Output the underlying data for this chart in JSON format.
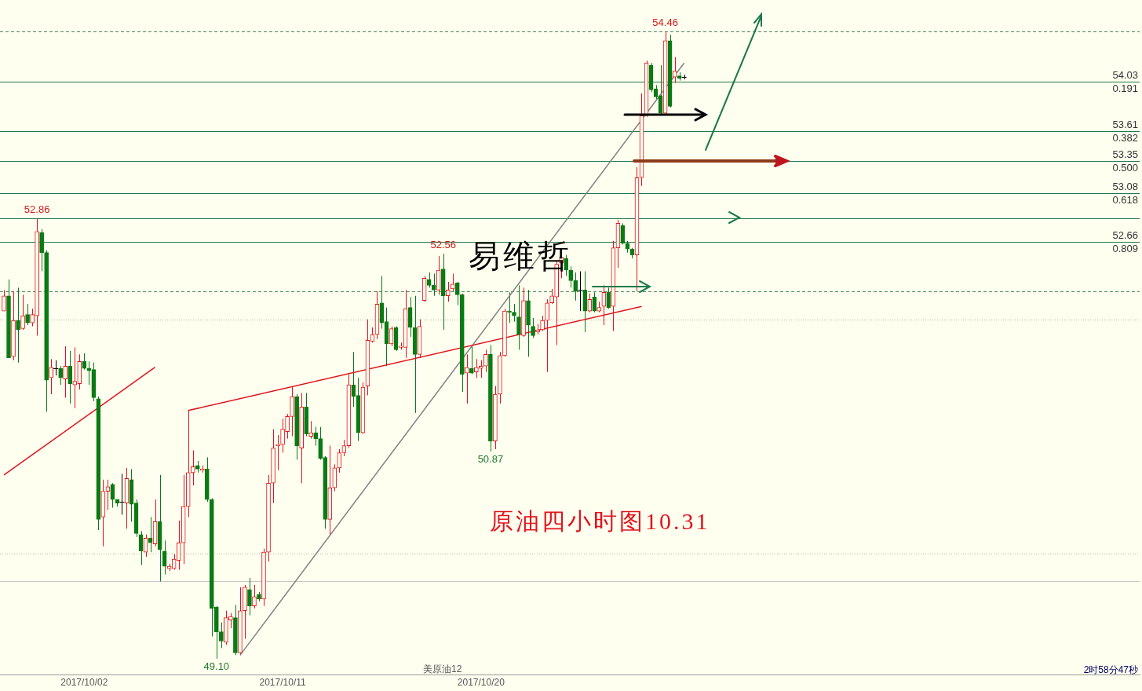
{
  "chart_data": {
    "type": "candlestick",
    "title": "原油四小时图10.31",
    "tick_labels": "x",
    "categories": [
      null,
      null,
      null,
      null,
      null,
      null,
      null,
      null,
      null,
      null,
      null,
      null,
      null,
      null,
      null,
      null,
      null,
      "2017/10/02",
      null,
      null,
      null,
      null,
      null,
      null,
      null,
      null,
      null,
      null,
      null,
      null,
      null,
      null,
      null,
      null,
      null,
      null,
      null,
      null,
      null,
      null,
      null,
      null,
      null,
      null,
      null,
      null,
      null,
      null,
      null,
      null,
      null,
      null,
      null,
      null,
      null,
      null,
      null,
      null,
      null,
      "2017/10/11",
      null,
      null,
      null,
      null,
      null,
      null,
      null,
      null,
      null,
      null,
      null,
      null,
      null,
      null,
      null,
      null,
      null,
      null,
      null,
      null,
      null,
      null,
      null,
      null,
      null,
      null,
      null,
      null,
      null,
      null,
      null,
      null,
      null,
      null,
      null,
      null,
      null,
      null,
      null,
      null,
      null,
      "2017/10/20",
      null,
      null,
      null,
      null,
      null,
      null,
      null,
      null,
      null,
      null,
      null,
      null,
      null,
      null,
      null,
      null,
      null,
      null,
      null,
      null,
      null,
      null,
      null,
      null,
      null,
      null,
      null,
      null,
      null,
      null,
      null,
      null,
      null,
      null,
      null,
      null,
      null,
      null,
      null,
      null,
      null,
      null,
      null
    ],
    "ohlc": [
      [
        52.07,
        52.25,
        52.07,
        52.2
      ],
      [
        52.2,
        52.34,
        51.67,
        51.67
      ],
      [
        51.68,
        52.24,
        51.65,
        51.99
      ],
      [
        51.99,
        52.27,
        51.63,
        51.91
      ],
      [
        51.92,
        52.21,
        51.91,
        52.03
      ],
      [
        52.04,
        52.13,
        51.95,
        51.97
      ],
      [
        51.97,
        52.09,
        51.94,
        52.04
      ],
      [
        52.03,
        52.86,
        51.86,
        52.75
      ],
      [
        52.74,
        52.77,
        52.41,
        52.57
      ],
      [
        52.57,
        52.59,
        51.21,
        51.48
      ],
      [
        51.5,
        51.66,
        51.36,
        51.59
      ],
      [
        51.58,
        51.65,
        51.52,
        51.58
      ],
      [
        51.58,
        51.6,
        51.44,
        51.5
      ],
      [
        51.49,
        51.77,
        51.33,
        51.6
      ],
      [
        51.6,
        51.73,
        51.28,
        51.45
      ],
      [
        51.44,
        51.76,
        51.24,
        51.47
      ],
      [
        51.45,
        51.7,
        51.4,
        51.64
      ],
      [
        51.64,
        51.71,
        51.57,
        51.58
      ],
      [
        51.58,
        51.64,
        51.44,
        51.56
      ],
      [
        51.57,
        51.63,
        51.3,
        51.33
      ],
      [
        51.32,
        51.34,
        50.2,
        50.29
      ],
      [
        50.31,
        50.63,
        50.06,
        50.53
      ],
      [
        50.53,
        50.63,
        50.37,
        50.57
      ],
      [
        50.59,
        50.6,
        50.39,
        50.46
      ],
      [
        50.46,
        50.46,
        50.4,
        50.43
      ],
      [
        50.44,
        50.68,
        50.33,
        50.44
      ],
      [
        50.43,
        50.73,
        50.21,
        50.64
      ],
      [
        50.63,
        50.72,
        50.27,
        50.42
      ],
      [
        50.43,
        50.46,
        50.14,
        50.17
      ],
      [
        50.16,
        50.19,
        49.9,
        50.02
      ],
      [
        50.01,
        50.16,
        49.97,
        50.13
      ],
      [
        50.13,
        50.31,
        50.01,
        50.09
      ],
      [
        50.08,
        50.46,
        50.06,
        50.27
      ],
      [
        50.27,
        50.67,
        49.76,
        50.03
      ],
      [
        50.02,
        50.11,
        49.82,
        49.89
      ],
      [
        49.87,
        49.91,
        49.85,
        49.89
      ],
      [
        49.87,
        49.99,
        49.86,
        49.95
      ],
      [
        49.94,
        50.28,
        49.86,
        50.09
      ],
      [
        50.09,
        50.67,
        49.91,
        50.4
      ],
      [
        50.4,
        51.22,
        50.31,
        50.69
      ],
      [
        50.69,
        50.88,
        50.58,
        50.74
      ],
      [
        50.75,
        50.79,
        50.69,
        50.72
      ],
      [
        50.71,
        50.75,
        50.69,
        50.72
      ],
      [
        50.72,
        50.82,
        50.44,
        50.46
      ],
      [
        50.46,
        50.47,
        49.29,
        49.53
      ],
      [
        49.54,
        49.55,
        49.1,
        49.33
      ],
      [
        49.33,
        49.41,
        49.19,
        49.25
      ],
      [
        49.24,
        49.51,
        49.22,
        49.45
      ],
      [
        49.43,
        49.49,
        49.36,
        49.46
      ],
      [
        49.45,
        49.56,
        49.13,
        49.15
      ],
      [
        49.15,
        49.71,
        49.13,
        49.51
      ],
      [
        49.51,
        49.73,
        49.27,
        49.71
      ],
      [
        49.69,
        49.79,
        49.47,
        49.55
      ],
      [
        49.55,
        49.73,
        49.53,
        49.63
      ],
      [
        49.65,
        49.67,
        49.59,
        49.61
      ],
      [
        49.61,
        50.04,
        49.55,
        50.01
      ],
      [
        50.01,
        50.67,
        49.93,
        50.6
      ],
      [
        50.6,
        51.06,
        50.43,
        50.9
      ],
      [
        50.92,
        51.01,
        50.71,
        50.93
      ],
      [
        50.93,
        51.15,
        50.86,
        51.06
      ],
      [
        51.04,
        51.19,
        50.98,
        51.17
      ],
      [
        51.17,
        51.42,
        51.0,
        51.34
      ],
      [
        51.34,
        51.36,
        50.8,
        50.92
      ],
      [
        50.9,
        51.37,
        50.6,
        51.25
      ],
      [
        51.25,
        51.37,
        51.0,
        51.02
      ],
      [
        51.0,
        51.13,
        50.98,
        51.03
      ],
      [
        51.03,
        51.08,
        50.92,
        50.98
      ],
      [
        50.98,
        51.08,
        50.8,
        50.81
      ],
      [
        50.82,
        50.83,
        50.21,
        50.29
      ],
      [
        50.29,
        50.92,
        50.16,
        50.56
      ],
      [
        50.56,
        50.76,
        50.53,
        50.73
      ],
      [
        50.73,
        50.89,
        50.69,
        50.86
      ],
      [
        50.86,
        50.97,
        50.83,
        50.92
      ],
      [
        50.92,
        51.53,
        50.9,
        51.44
      ],
      [
        51.44,
        51.72,
        51.25,
        51.34
      ],
      [
        51.35,
        51.5,
        50.96,
        51.03
      ],
      [
        51.03,
        51.46,
        51.02,
        51.42
      ],
      [
        51.43,
        52.0,
        51.35,
        51.82
      ],
      [
        51.81,
        51.93,
        51.8,
        51.87
      ],
      [
        51.87,
        52.24,
        51.83,
        52.13
      ],
      [
        52.14,
        52.37,
        51.92,
        51.97
      ],
      [
        51.98,
        52.1,
        51.6,
        51.79
      ],
      [
        51.79,
        51.94,
        51.77,
        51.92
      ],
      [
        51.93,
        51.94,
        51.73,
        51.74
      ],
      [
        51.76,
        51.8,
        51.74,
        51.77
      ],
      [
        51.76,
        52.25,
        51.67,
        52.09
      ],
      [
        52.1,
        52.19,
        51.85,
        51.93
      ],
      [
        51.93,
        52.2,
        51.2,
        51.7
      ],
      [
        51.7,
        52.0,
        51.67,
        51.94
      ],
      [
        52.16,
        52.37,
        52.15,
        52.35
      ],
      [
        52.34,
        52.4,
        52.27,
        52.29
      ],
      [
        52.29,
        52.39,
        52.2,
        52.25
      ],
      [
        52.25,
        52.54,
        52.21,
        52.42
      ],
      [
        52.43,
        52.56,
        51.91,
        52.2
      ],
      [
        52.2,
        52.32,
        52.15,
        52.25
      ],
      [
        52.26,
        52.39,
        52.24,
        52.3
      ],
      [
        52.31,
        52.32,
        52.12,
        52.21
      ],
      [
        52.21,
        52.22,
        51.38,
        51.53
      ],
      [
        51.54,
        51.7,
        51.28,
        51.59
      ],
      [
        51.58,
        51.77,
        51.53,
        51.54
      ],
      [
        51.55,
        51.66,
        51.5,
        51.59
      ],
      [
        51.58,
        51.65,
        51.5,
        51.6
      ],
      [
        51.6,
        51.74,
        51.55,
        51.7
      ],
      [
        51.7,
        51.78,
        50.87,
        50.96
      ],
      [
        50.96,
        51.43,
        50.89,
        51.36
      ],
      [
        51.36,
        51.72,
        51.28,
        51.69
      ],
      [
        51.69,
        52.09,
        51.68,
        52.07
      ],
      [
        52.07,
        52.23,
        51.97,
        52.06
      ],
      [
        52.06,
        52.13,
        51.98,
        52.03
      ],
      [
        52.02,
        52.29,
        51.74,
        51.87
      ],
      [
        51.86,
        52.27,
        51.85,
        52.16
      ],
      [
        52.16,
        52.25,
        51.68,
        51.95
      ],
      [
        51.94,
        52.01,
        51.84,
        51.86
      ],
      [
        51.89,
        51.96,
        51.87,
        51.91
      ],
      [
        51.91,
        52.03,
        51.9,
        51.99
      ],
      [
        51.99,
        52.17,
        51.55,
        52.14
      ],
      [
        52.14,
        52.26,
        52.13,
        52.2
      ],
      [
        52.19,
        52.5,
        51.78,
        52.47
      ],
      [
        52.48,
        52.55,
        52.35,
        52.53
      ],
      [
        52.52,
        52.55,
        52.37,
        52.42
      ],
      [
        52.42,
        52.45,
        52.27,
        52.33
      ],
      [
        52.33,
        52.4,
        52.16,
        52.24
      ],
      [
        52.25,
        52.41,
        52.07,
        52.25
      ],
      [
        52.25,
        52.41,
        51.89,
        52.07
      ],
      [
        52.07,
        52.22,
        52.06,
        52.17
      ],
      [
        52.19,
        52.23,
        52.06,
        52.07
      ],
      [
        52.07,
        52.15,
        52.06,
        52.1
      ],
      [
        52.11,
        52.29,
        51.95,
        52.23
      ],
      [
        52.23,
        52.27,
        52.09,
        52.1
      ],
      [
        52.11,
        52.67,
        51.9,
        52.61
      ],
      [
        52.61,
        52.85,
        52.44,
        52.82
      ],
      [
        52.8,
        52.82,
        52.64,
        52.65
      ],
      [
        52.65,
        52.67,
        52.57,
        52.6
      ],
      [
        52.6,
        52.61,
        52.52,
        52.55
      ],
      [
        52.55,
        53.3,
        52.24,
        53.21
      ],
      [
        53.21,
        53.93,
        53.14,
        53.74
      ],
      [
        53.74,
        54.21,
        53.73,
        54.19
      ],
      [
        54.17,
        54.19,
        53.94,
        53.96
      ],
      [
        53.97,
        54.0,
        53.88,
        53.9
      ],
      [
        53.91,
        54.17,
        53.75,
        53.76
      ],
      [
        53.76,
        54.46,
        53.75,
        54.38
      ],
      [
        54.38,
        54.43,
        53.81,
        53.82
      ],
      [
        54.07,
        54.24,
        54.02,
        54.12
      ],
      [
        54.08,
        54.11,
        54.04,
        54.06
      ],
      [
        54.07,
        54.09,
        54.05,
        54.07
      ]
    ],
    "colors": [
      "#e0141e",
      "#0a7a14",
      "#e0141e",
      "#0a7a14",
      "#e0141e",
      "#0a7a14",
      "#e0141e",
      "#e0141e",
      "#0a7a14",
      "#0a7a14",
      "#e0141e",
      "#000000",
      "#0a7a14",
      "#e0141e",
      "#0a7a14",
      "#e0141e",
      "#e0141e",
      "#0a7a14",
      "#0a7a14",
      "#0a7a14",
      "#0a7a14",
      "#e0141e",
      "#e0141e",
      "#0a7a14",
      "#0a7a14",
      "#000000",
      "#e0141e",
      "#0a7a14",
      "#0a7a14",
      "#0a7a14",
      "#e0141e",
      "#0a7a14",
      "#e0141e",
      "#0a7a14",
      "#0a7a14",
      "#e0141e",
      "#e0141e",
      "#e0141e",
      "#e0141e",
      "#e0141e",
      "#e0141e",
      "#0a7a14",
      "#e0141e",
      "#0a7a14",
      "#0a7a14",
      "#0a7a14",
      "#0a7a14",
      "#e0141e",
      "#e0141e",
      "#0a7a14",
      "#e0141e",
      "#e0141e",
      "#0a7a14",
      "#e0141e",
      "#0a7a14",
      "#e0141e",
      "#e0141e",
      "#e0141e",
      "#e0141e",
      "#e0141e",
      "#e0141e",
      "#e0141e",
      "#0a7a14",
      "#e0141e",
      "#0a7a14",
      "#e0141e",
      "#0a7a14",
      "#0a7a14",
      "#0a7a14",
      "#e0141e",
      "#e0141e",
      "#e0141e",
      "#e0141e",
      "#e0141e",
      "#0a7a14",
      "#0a7a14",
      "#e0141e",
      "#e0141e",
      "#e0141e",
      "#e0141e",
      "#0a7a14",
      "#0a7a14",
      "#e0141e",
      "#0a7a14",
      "#e0141e",
      "#e0141e",
      "#0a7a14",
      "#0a7a14",
      "#e0141e",
      "#e0141e",
      "#0a7a14",
      "#0a7a14",
      "#e0141e",
      "#0a7a14",
      "#e0141e",
      "#e0141e",
      "#0a7a14",
      "#0a7a14",
      "#e0141e",
      "#0a7a14",
      "#e0141e",
      "#e0141e",
      "#e0141e",
      "#0a7a14",
      "#e0141e",
      "#e0141e",
      "#e0141e",
      "#0a7a14",
      "#0a7a14",
      "#0a7a14",
      "#e0141e",
      "#0a7a14",
      "#0a7a14",
      "#e0141e",
      "#e0141e",
      "#e0141e",
      "#e0141e",
      "#e0141e",
      "#e0141e",
      "#0a7a14",
      "#0a7a14",
      "#0a7a14",
      "#000000",
      "#0a7a14",
      "#e0141e",
      "#0a7a14",
      "#e0141e",
      "#e0141e",
      "#0a7a14",
      "#e0141e",
      "#e0141e",
      "#0a7a14",
      "#0a7a14",
      "#0a7a14",
      "#e0141e",
      "#e0141e",
      "#e0141e",
      "#0a7a14",
      "#0a7a14",
      "#0a7a14",
      "#e0141e",
      "#0a7a14",
      "#e0141e",
      "#0a7a14",
      "#000000"
    ],
    "series": [
      {
        "type": "line",
        "color": "#e0141e",
        "values": [
          50.67,
          null,
          null,
          null,
          null,
          null,
          null,
          null,
          null,
          null,
          null,
          null,
          null,
          null,
          null,
          null,
          null,
          null,
          null,
          null,
          null,
          null,
          null,
          null,
          null,
          null,
          null,
          null,
          null,
          null,
          null,
          null,
          51.59,
          null,
          null,
          null,
          null,
          null,
          null,
          null,
          null,
          null,
          null,
          null,
          null,
          null,
          null,
          null,
          null,
          null,
          null,
          null,
          null,
          null,
          null,
          null,
          null,
          null,
          null,
          null,
          null,
          null,
          null,
          null,
          null,
          null,
          null,
          null,
          null,
          null,
          null,
          null,
          null,
          null,
          null,
          null,
          null,
          null,
          null,
          null,
          null,
          null,
          null,
          null,
          null,
          null,
          null,
          null,
          null,
          null,
          null,
          null,
          null,
          null,
          null,
          null,
          null,
          null,
          null,
          null,
          null,
          null,
          null,
          null,
          null,
          null,
          null,
          null,
          null,
          null,
          null,
          null,
          null,
          null,
          null,
          null,
          null,
          null,
          null,
          null,
          null,
          null,
          null,
          null,
          null,
          null,
          null,
          null,
          null,
          null,
          null,
          null,
          null,
          null,
          null,
          null,
          null,
          null,
          null,
          null,
          null,
          null,
          null,
          null,
          null
        ]
      },
      {
        "type": "line",
        "color": "#e0141e",
        "values": [
          null,
          null,
          null,
          null,
          null,
          null,
          null,
          null,
          null,
          null,
          null,
          null,
          null,
          null,
          null,
          null,
          null,
          null,
          null,
          null,
          null,
          null,
          null,
          null,
          null,
          null,
          null,
          null,
          null,
          null,
          null,
          null,
          null,
          null,
          null,
          null,
          null,
          null,
          null,
          51.22,
          null,
          null,
          null,
          null,
          null,
          null,
          null,
          null,
          null,
          null,
          null,
          null,
          null,
          null,
          null,
          null,
          null,
          null,
          null,
          null,
          null,
          null,
          null,
          null,
          null,
          null,
          null,
          null,
          null,
          null,
          null,
          null,
          null,
          null,
          null,
          null,
          null,
          null,
          null,
          null,
          null,
          null,
          null,
          null,
          null,
          null,
          null,
          null,
          null,
          null,
          null,
          null,
          null,
          null,
          null,
          null,
          null,
          null,
          null,
          null,
          null,
          null,
          null,
          null,
          null,
          null,
          null,
          null,
          null,
          null,
          null,
          null,
          null,
          null,
          null,
          null,
          null,
          null,
          null,
          null,
          null,
          null,
          null,
          null,
          null,
          null,
          null,
          null,
          null,
          null,
          null,
          null,
          null,
          null,
          null,
          52.11,
          null,
          null,
          null,
          null,
          null,
          null,
          null,
          null,
          null
        ]
      },
      {
        "type": "line",
        "color": "#808080",
        "values": [
          null,
          null,
          null,
          null,
          null,
          null,
          null,
          null,
          null,
          null,
          null,
          null,
          null,
          null,
          null,
          null,
          null,
          null,
          null,
          null,
          null,
          null,
          null,
          null,
          null,
          null,
          null,
          null,
          null,
          null,
          null,
          null,
          null,
          null,
          null,
          null,
          null,
          null,
          null,
          null,
          null,
          null,
          null,
          null,
          null,
          null,
          null,
          null,
          null,
          null,
          49.13,
          null,
          null,
          null,
          null,
          null,
          null,
          null,
          null,
          null,
          null,
          null,
          null,
          null,
          null,
          null,
          null,
          null,
          null,
          null,
          null,
          null,
          null,
          null,
          null,
          null,
          null,
          null,
          null,
          null,
          null,
          null,
          null,
          null,
          null,
          null,
          null,
          null,
          null,
          null,
          null,
          null,
          null,
          null,
          null,
          null,
          null,
          null,
          null,
          null,
          null,
          null,
          null,
          null,
          null,
          null,
          null,
          null,
          null,
          null,
          null,
          null,
          null,
          null,
          null,
          null,
          null,
          null,
          null,
          null,
          null,
          null,
          null,
          null,
          null,
          null,
          null,
          null,
          null,
          null,
          null,
          null,
          null,
          null,
          null,
          null,
          null,
          null,
          null,
          null,
          null,
          null,
          null,
          null,
          54.19
        ]
      }
    ],
    "ref_lines": [
      {
        "axis": "y",
        "value": 54.46,
        "color": "#4a8a5a",
        "line_style": "dashed"
      },
      {
        "axis": "y",
        "value": 54.03,
        "label": "54.03",
        "color": "#1e7a4a"
      },
      {
        "axis": "y",
        "value": 53.61,
        "label": "53.61",
        "color": "#1e7a4a"
      },
      {
        "axis": "y",
        "value": 53.35,
        "label": "53.35",
        "color": "#1e7a4a"
      },
      {
        "axis": "y",
        "value": 53.08,
        "label": "53.08",
        "color": "#1e7a4a"
      },
      {
        "axis": "y",
        "value": 52.86,
        "color": "#1e7a4a"
      },
      {
        "axis": "y",
        "value": 52.66,
        "label": "52.66",
        "color": "#1e7a4a"
      },
      {
        "axis": "y",
        "value": 52.24,
        "color": "#4a8a5a",
        "line_style": "dashed"
      },
      {
        "axis": "y",
        "value": 52.0,
        "color": "#b4b4a0",
        "line_style": "dotted"
      },
      {
        "axis": "y",
        "value": 50.0,
        "color": "#b4b4a0",
        "line_style": "dotted"
      },
      {
        "axis": "y",
        "value": 49.76,
        "color": "#c8c8c0"
      }
    ],
    "annotations": [
      {
        "text": "52.86",
        "y": 52.86
      },
      {
        "text": "52.56",
        "y": 52.56
      },
      {
        "text": "54.46",
        "y": 54.46
      },
      {
        "text": "50.87",
        "y": 50.87
      },
      {
        "text": "49.10",
        "y": 49.1
      },
      {
        "text": "0.191",
        "y": 54.03
      },
      {
        "text": "0.382",
        "y": 53.61
      },
      {
        "text": "0.500",
        "y": 53.35
      },
      {
        "text": "0.618",
        "y": 53.08
      },
      {
        "text": "0.809",
        "y": 52.66
      },
      "易维哲",
      "美原油12",
      "2时58分47秒"
    ]
  }
}
